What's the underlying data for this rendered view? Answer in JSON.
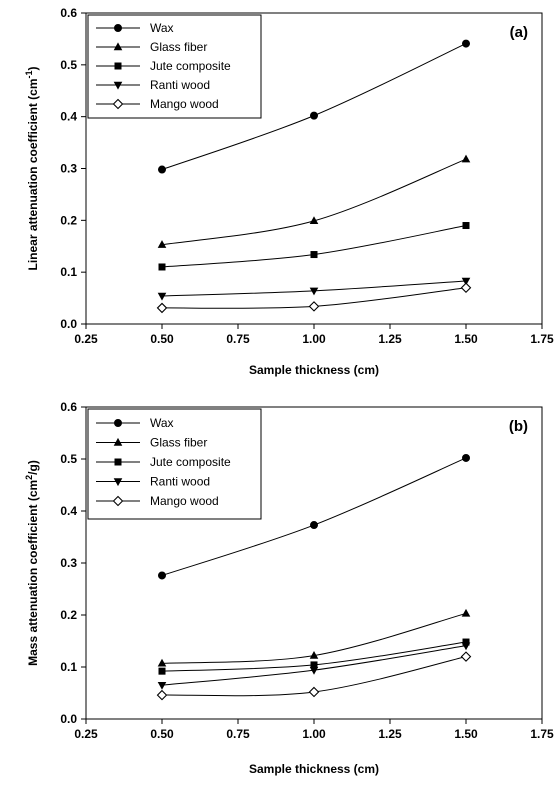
{
  "chart_data": [
    {
      "type": "line",
      "panel_label": "(a)",
      "xlabel": "Sample thickness (cm)",
      "ylabel": "Linear attenuation coefficient (cm",
      "ylabel_sup": "-1",
      "ylabel_end": ")",
      "xlim": [
        0.25,
        1.75
      ],
      "ylim": [
        0.0,
        0.6
      ],
      "xticks": [
        "0.25",
        "0.50",
        "0.75",
        "1.00",
        "1.25",
        "1.50",
        "1.75"
      ],
      "yticks": [
        "0.0",
        "0.1",
        "0.2",
        "0.3",
        "0.4",
        "0.5",
        "0.6"
      ],
      "grid": false,
      "legend": "top-left",
      "x": [
        0.5,
        1.0,
        1.5
      ],
      "series": [
        {
          "name": "Wax",
          "marker": "circle",
          "values": [
            0.298,
            0.402,
            0.541
          ]
        },
        {
          "name": "Glass fiber",
          "marker": "triangle-up",
          "values": [
            0.153,
            0.199,
            0.318
          ]
        },
        {
          "name": "Jute composite",
          "marker": "square",
          "values": [
            0.11,
            0.134,
            0.19
          ]
        },
        {
          "name": "Ranti wood",
          "marker": "triangle-down",
          "values": [
            0.054,
            0.064,
            0.083
          ]
        },
        {
          "name": "Mango wood",
          "marker": "diamond-open",
          "values": [
            0.031,
            0.034,
            0.07
          ]
        }
      ]
    },
    {
      "type": "line",
      "panel_label": "(b)",
      "xlabel": "Sample thickness (cm)",
      "ylabel": "Mass attenuation coefficient (cm",
      "ylabel_sup": "2",
      "ylabel_end": "/g)",
      "xlim": [
        0.25,
        1.75
      ],
      "ylim": [
        0.0,
        0.6
      ],
      "xticks": [
        "0.25",
        "0.50",
        "0.75",
        "1.00",
        "1.25",
        "1.50",
        "1.75"
      ],
      "yticks": [
        "0.0",
        "0.1",
        "0.2",
        "0.3",
        "0.4",
        "0.5",
        "0.6"
      ],
      "grid": false,
      "legend": "top-left",
      "x": [
        0.5,
        1.0,
        1.5
      ],
      "series": [
        {
          "name": "Wax",
          "marker": "circle",
          "values": [
            0.276,
            0.373,
            0.502
          ]
        },
        {
          "name": "Glass fiber",
          "marker": "triangle-up",
          "values": [
            0.107,
            0.122,
            0.203
          ]
        },
        {
          "name": "Jute composite",
          "marker": "square",
          "values": [
            0.092,
            0.104,
            0.148
          ]
        },
        {
          "name": "Ranti wood",
          "marker": "triangle-down",
          "values": [
            0.065,
            0.094,
            0.141
          ]
        },
        {
          "name": "Mango wood",
          "marker": "diamond-open",
          "values": [
            0.046,
            0.052,
            0.12
          ]
        }
      ]
    }
  ]
}
